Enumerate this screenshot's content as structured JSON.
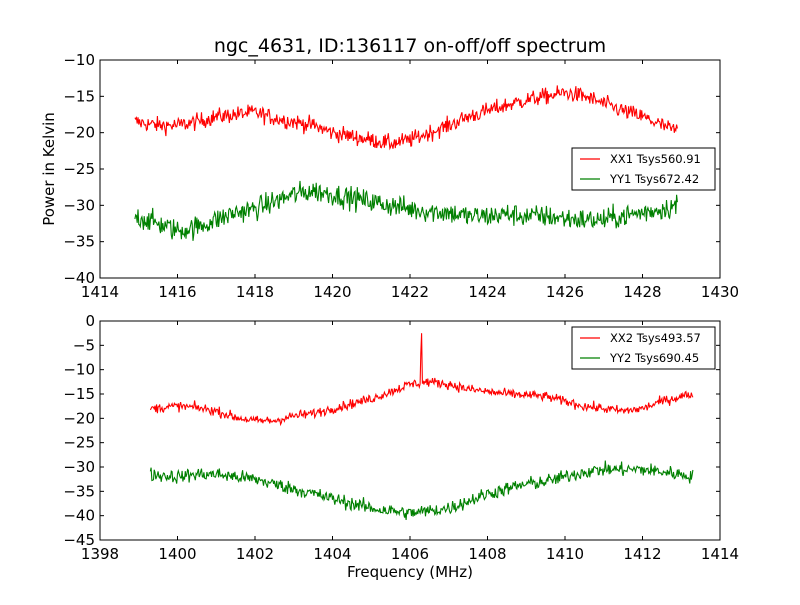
{
  "figure": {
    "title": "ngc_4631, ID:136117 on-off/off spectrum",
    "ylabel": "Power in Kelvin",
    "xlabel": "Frequency (MHz)"
  },
  "chart_data": [
    {
      "type": "line",
      "title": "ngc_4631, ID:136117 on-off/off spectrum",
      "xlabel": "",
      "ylabel": "Power in Kelvin",
      "xlim": [
        1414,
        1430
      ],
      "ylim": [
        -40,
        -10
      ],
      "xticks": [
        1414,
        1416,
        1418,
        1420,
        1422,
        1424,
        1426,
        1428,
        1430
      ],
      "yticks": [
        -40,
        -35,
        -30,
        -25,
        -20,
        -15,
        -10
      ],
      "xtick_labels": [
        "1414",
        "1416",
        "1418",
        "1420",
        "1422",
        "1424",
        "1426",
        "1428",
        "1430"
      ],
      "ytick_labels": [
        "−40",
        "−35",
        "−30",
        "−25",
        "−20",
        "−15",
        "−10"
      ],
      "grid": false,
      "legend_position": "center-right",
      "series": [
        {
          "name": "XX1 Tsys560.91",
          "color": "#ff0000",
          "noise": 0.8,
          "x": [
            1414.9,
            1415.5,
            1416.0,
            1416.5,
            1417.0,
            1417.5,
            1418.0,
            1418.5,
            1419.0,
            1419.5,
            1420.0,
            1420.5,
            1421.0,
            1421.5,
            1422.0,
            1422.5,
            1423.0,
            1423.5,
            1424.0,
            1424.5,
            1425.0,
            1425.5,
            1426.0,
            1426.5,
            1427.0,
            1427.5,
            1428.0,
            1428.5,
            1428.9
          ],
          "y": [
            -18.5,
            -19.0,
            -19.0,
            -18.5,
            -17.8,
            -17.5,
            -17.2,
            -18.0,
            -18.5,
            -19.0,
            -20.0,
            -20.5,
            -21.0,
            -21.5,
            -21.0,
            -20.0,
            -19.0,
            -17.8,
            -17.0,
            -16.2,
            -15.5,
            -15.0,
            -14.5,
            -15.0,
            -16.0,
            -17.0,
            -17.8,
            -19.0,
            -19.8
          ]
        },
        {
          "name": "YY1 Tsys672.42",
          "color": "#008000",
          "noise": 1.1,
          "x": [
            1414.9,
            1415.5,
            1416.0,
            1416.5,
            1417.0,
            1417.5,
            1418.0,
            1418.5,
            1419.0,
            1419.5,
            1420.0,
            1420.5,
            1421.0,
            1421.5,
            1422.0,
            1422.5,
            1423.0,
            1423.5,
            1424.0,
            1424.5,
            1425.0,
            1425.5,
            1426.0,
            1426.5,
            1427.0,
            1427.5,
            1428.0,
            1428.5,
            1428.9
          ],
          "y": [
            -31.5,
            -32.5,
            -33.5,
            -33.0,
            -32.0,
            -31.0,
            -30.5,
            -29.5,
            -28.5,
            -28.0,
            -28.5,
            -29.0,
            -29.5,
            -30.0,
            -30.5,
            -30.8,
            -31.0,
            -31.5,
            -31.5,
            -31.2,
            -31.5,
            -31.5,
            -31.8,
            -32.0,
            -32.0,
            -31.5,
            -31.0,
            -30.5,
            -30.0
          ]
        }
      ]
    },
    {
      "type": "line",
      "title": "",
      "xlabel": "Frequency (MHz)",
      "ylabel": "",
      "xlim": [
        1398,
        1414
      ],
      "ylim": [
        -45,
        0
      ],
      "xticks": [
        1398,
        1400,
        1402,
        1404,
        1406,
        1408,
        1410,
        1412,
        1414
      ],
      "yticks": [
        -45,
        -40,
        -35,
        -30,
        -25,
        -20,
        -15,
        -10,
        -5,
        0
      ],
      "xtick_labels": [
        "1398",
        "1400",
        "1402",
        "1404",
        "1406",
        "1408",
        "1410",
        "1412",
        "1414"
      ],
      "ytick_labels": [
        "−45",
        "−40",
        "−35",
        "−30",
        "−25",
        "−20",
        "−15",
        "−10",
        "−5",
        "0"
      ],
      "grid": false,
      "legend_position": "top-right",
      "series": [
        {
          "name": "XX2 Tsys493.57",
          "color": "#ff0000",
          "noise": 0.7,
          "spike": {
            "x": 1406.3,
            "y": -2.5
          },
          "x": [
            1399.3,
            1400.0,
            1400.5,
            1401.0,
            1401.5,
            1402.0,
            1402.5,
            1403.0,
            1403.5,
            1404.0,
            1404.5,
            1405.0,
            1405.5,
            1406.0,
            1406.5,
            1407.0,
            1407.5,
            1408.0,
            1408.5,
            1409.0,
            1409.5,
            1410.0,
            1410.5,
            1411.0,
            1411.5,
            1412.0,
            1412.5,
            1413.0,
            1413.3
          ],
          "y": [
            -18.0,
            -17.5,
            -17.8,
            -18.5,
            -19.8,
            -20.5,
            -20.5,
            -19.5,
            -19.0,
            -18.0,
            -17.0,
            -16.0,
            -14.5,
            -13.0,
            -12.5,
            -13.0,
            -14.0,
            -14.5,
            -15.0,
            -15.2,
            -15.5,
            -16.5,
            -17.5,
            -18.0,
            -18.5,
            -18.0,
            -16.5,
            -15.5,
            -15.0
          ]
        },
        {
          "name": "YY2 Tsys690.45",
          "color": "#008000",
          "noise": 1.0,
          "x": [
            1399.3,
            1400.0,
            1400.5,
            1401.0,
            1401.5,
            1402.0,
            1402.5,
            1403.0,
            1403.5,
            1404.0,
            1404.5,
            1405.0,
            1405.5,
            1406.0,
            1406.5,
            1407.0,
            1407.5,
            1408.0,
            1408.5,
            1409.0,
            1409.5,
            1410.0,
            1410.5,
            1411.0,
            1411.5,
            1412.0,
            1412.5,
            1413.0,
            1413.3
          ],
          "y": [
            -31.5,
            -32.0,
            -31.5,
            -31.5,
            -32.0,
            -32.5,
            -33.5,
            -34.5,
            -35.5,
            -36.5,
            -37.5,
            -38.5,
            -39.0,
            -39.5,
            -39.0,
            -38.5,
            -37.0,
            -35.5,
            -34.5,
            -33.5,
            -33.0,
            -32.0,
            -31.0,
            -30.5,
            -30.5,
            -30.5,
            -31.0,
            -31.5,
            -32.0
          ]
        }
      ]
    }
  ]
}
